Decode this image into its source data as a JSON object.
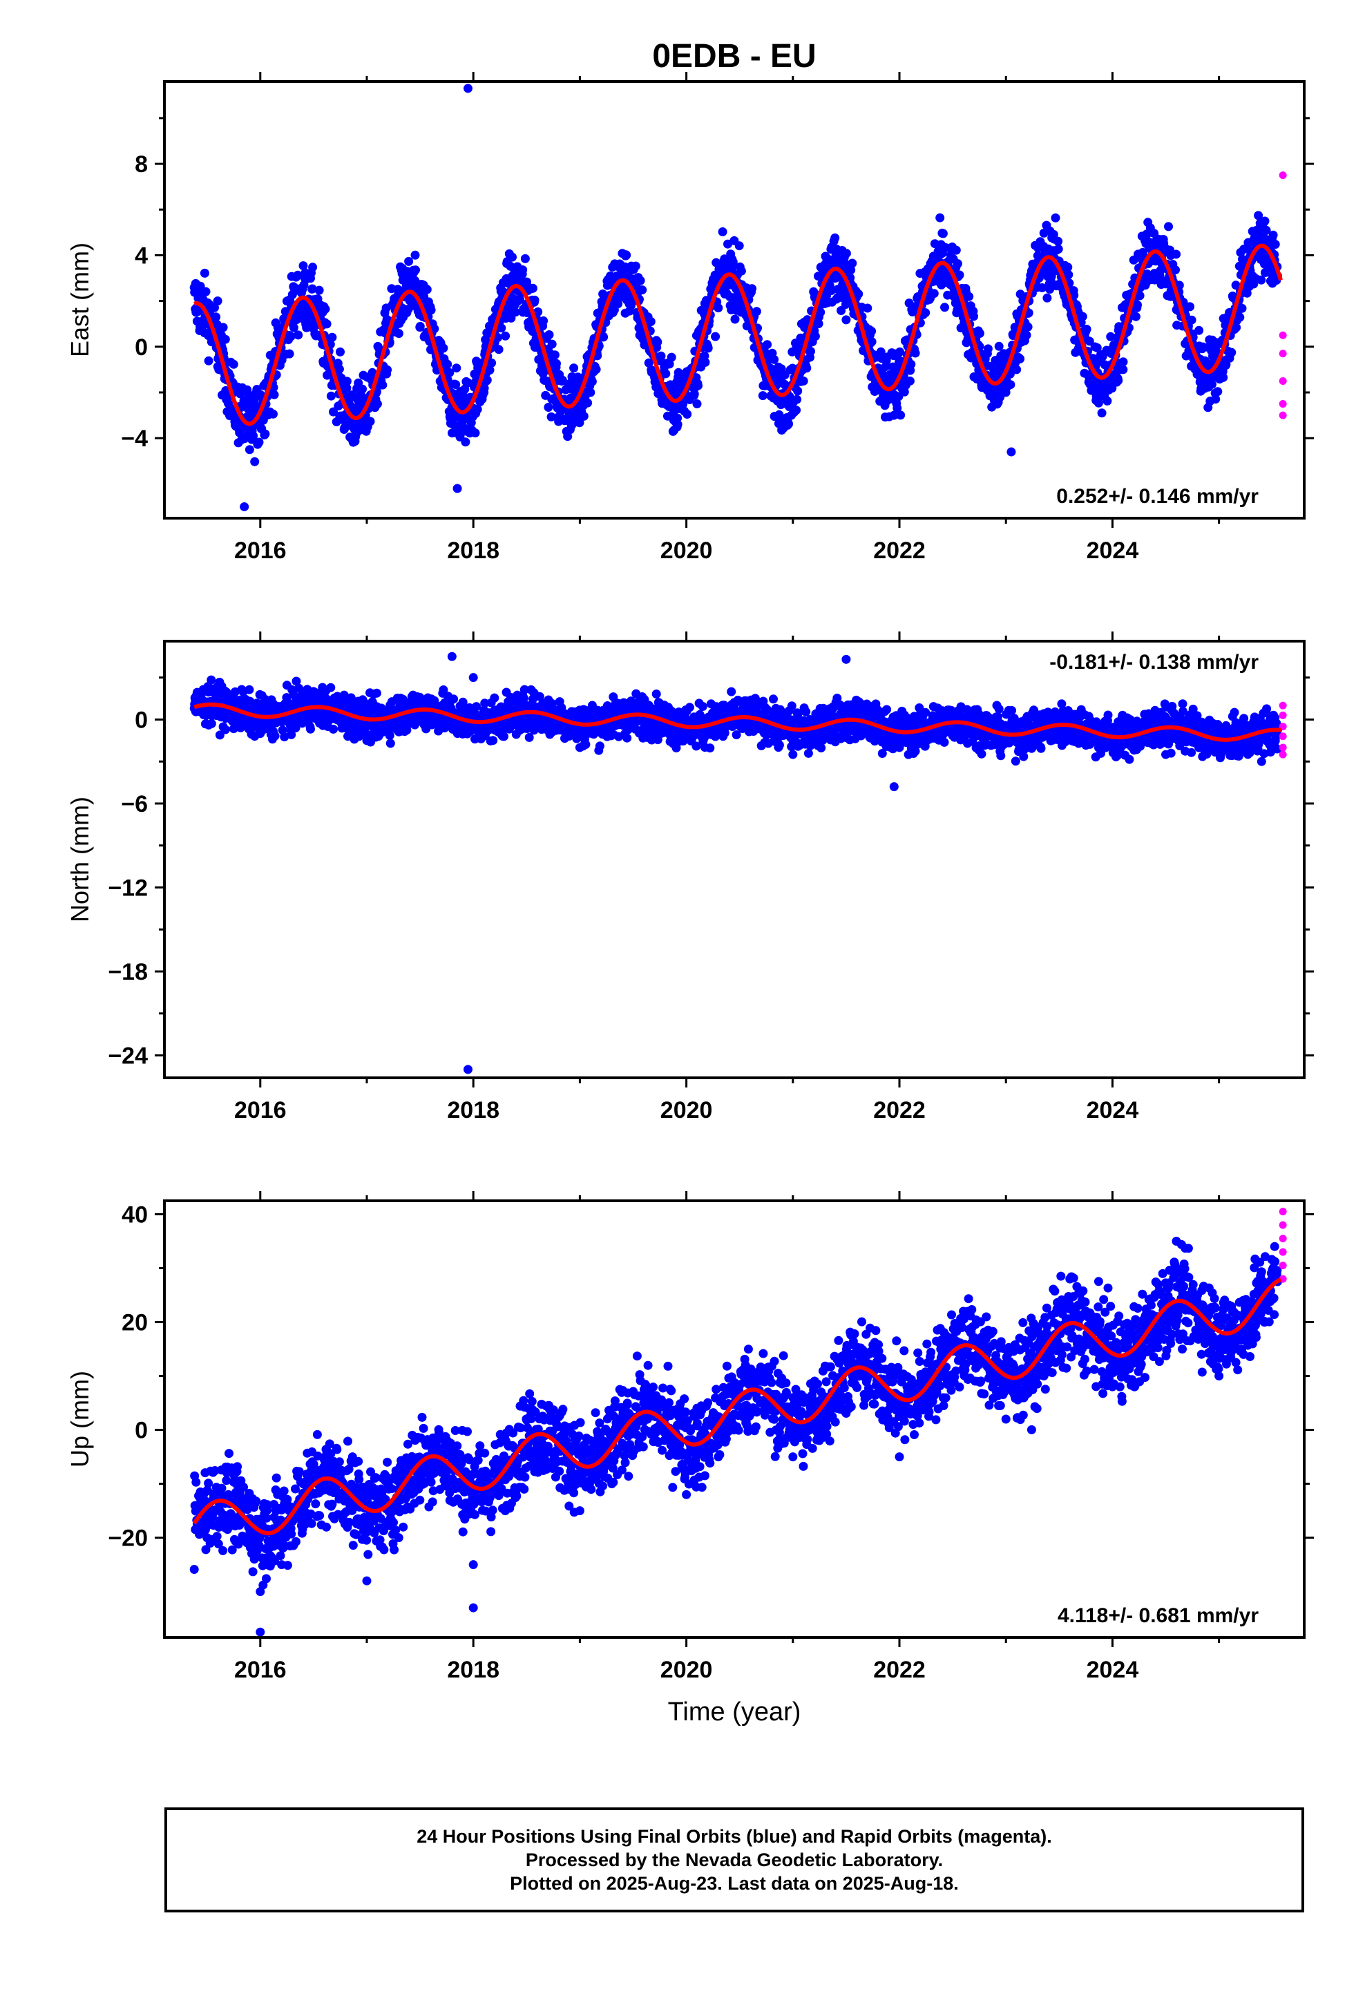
{
  "title": "0EDB - EU",
  "footer": {
    "line1": "24 Hour Positions Using Final Orbits (blue) and Rapid Orbits (magenta).",
    "line2": "Processed by the Nevada Geodetic Laboratory.",
    "line3": "Plotted on 2025-Aug-23. Last data on 2025-Aug-18."
  },
  "colors": {
    "final": "#0000ff",
    "rapid": "#ff00ff",
    "model": "#ff0000"
  },
  "chart_data": [
    {
      "type": "scatter",
      "title": "0EDB - EU",
      "xlabel": "",
      "ylabel": "East (mm)",
      "xlim": [
        2015.1,
        2025.8
      ],
      "ylim": [
        -7.5,
        11.6
      ],
      "xticks": [
        2016,
        2018,
        2020,
        2022,
        2024
      ],
      "yticks": [
        -4,
        0,
        4,
        8
      ],
      "rate_label": "0.252+/- 0.146 mm/yr",
      "rate_position": "bottom-right",
      "model": {
        "offset": -0.8,
        "rate": 0.252,
        "amp": 2.7,
        "phase_peak": 0.4
      },
      "series": [
        {
          "name": "Final Orbits",
          "type": "scatter",
          "points": [
            [
              2015.5,
              1.0
            ],
            [
              2015.6,
              2.0
            ],
            [
              2015.8,
              -3.0
            ],
            [
              2015.9,
              -4.5
            ],
            [
              2016.1,
              -2.0
            ],
            [
              2016.4,
              2.0
            ],
            [
              2016.6,
              0.5
            ],
            [
              2016.9,
              -3.8
            ],
            [
              2017.1,
              -2.5
            ],
            [
              2017.4,
              2.5
            ],
            [
              2017.6,
              1.0
            ],
            [
              2017.9,
              -3.5
            ],
            [
              2018.1,
              -2.0
            ],
            [
              2018.4,
              2.5
            ],
            [
              2018.6,
              1.0
            ],
            [
              2018.9,
              -3.0
            ],
            [
              2019.1,
              -2.0
            ],
            [
              2019.4,
              3.0
            ],
            [
              2019.6,
              1.5
            ],
            [
              2019.9,
              -2.5
            ],
            [
              2020.1,
              -2.5
            ],
            [
              2020.4,
              3.0
            ],
            [
              2020.6,
              1.5
            ],
            [
              2020.9,
              -2.5
            ],
            [
              2021.1,
              -1.5
            ],
            [
              2021.4,
              3.0
            ],
            [
              2021.6,
              1.5
            ],
            [
              2021.9,
              -2.0
            ],
            [
              2022.1,
              -1.5
            ],
            [
              2022.4,
              3.5
            ],
            [
              2022.6,
              2.0
            ],
            [
              2022.9,
              -2.0
            ],
            [
              2023.1,
              -1.0
            ],
            [
              2023.4,
              3.5
            ],
            [
              2023.6,
              2.0
            ],
            [
              2023.9,
              -1.5
            ],
            [
              2024.1,
              -1.0
            ],
            [
              2024.4,
              4.0
            ],
            [
              2024.6,
              2.5
            ],
            [
              2024.9,
              -1.5
            ],
            [
              2025.1,
              -0.5
            ],
            [
              2025.4,
              4.0
            ],
            [
              2017.95,
              11.3
            ],
            [
              2015.85,
              -7.0
            ],
            [
              2017.85,
              -6.2
            ],
            [
              2023.05,
              -4.6
            ]
          ]
        }
      ],
      "rapid": [
        [
          2025.6,
          7.5
        ],
        [
          2025.6,
          0.5
        ],
        [
          2025.6,
          -0.3
        ],
        [
          2025.6,
          -1.5
        ],
        [
          2025.6,
          -2.5
        ],
        [
          2025.6,
          -3.0
        ]
      ]
    },
    {
      "type": "scatter",
      "xlabel": "",
      "ylabel": "North (mm)",
      "xlim": [
        2015.1,
        2025.8
      ],
      "ylim": [
        -25.6,
        5.6
      ],
      "xticks": [
        2016,
        2018,
        2020,
        2022,
        2024
      ],
      "yticks": [
        -24,
        -18,
        -12,
        -6,
        0
      ],
      "rate_label": "-0.181+/- 0.138 mm/yr",
      "rate_position": "top-right",
      "model": {
        "offset": 0.7,
        "rate": -0.181,
        "amp": 0.4,
        "phase_peak": 0.55
      },
      "series": [
        {
          "name": "Final Orbits",
          "type": "scatter",
          "points": [
            [
              2015.5,
              1.0
            ],
            [
              2016.0,
              -1.0
            ],
            [
              2016.5,
              2.0
            ],
            [
              2017.0,
              -1.5
            ],
            [
              2017.5,
              1.5
            ],
            [
              2017.8,
              4.5
            ],
            [
              2018.0,
              3.0
            ],
            [
              2018.5,
              1.0
            ],
            [
              2019.0,
              -2.0
            ],
            [
              2019.5,
              1.0
            ],
            [
              2020.0,
              -1.0
            ],
            [
              2020.5,
              0.5
            ],
            [
              2021.0,
              -2.5
            ],
            [
              2021.5,
              -1.0
            ],
            [
              2022.0,
              -2.0
            ],
            [
              2022.5,
              0.5
            ],
            [
              2023.0,
              -1.5
            ],
            [
              2023.5,
              -1.0
            ],
            [
              2024.0,
              -1.0
            ],
            [
              2024.5,
              -2.5
            ],
            [
              2025.0,
              -2.0
            ],
            [
              2025.4,
              -3.0
            ],
            [
              2017.95,
              -25.0
            ],
            [
              2021.5,
              4.3
            ],
            [
              2021.95,
              -4.8
            ]
          ]
        }
      ],
      "rapid": [
        [
          2025.6,
          1.0
        ],
        [
          2025.6,
          0.3
        ],
        [
          2025.6,
          -0.5
        ],
        [
          2025.6,
          -1.2
        ],
        [
          2025.6,
          -2.0
        ],
        [
          2025.6,
          -2.5
        ]
      ]
    },
    {
      "type": "scatter",
      "xlabel": "Time (year)",
      "ylabel": "Up (mm)",
      "xlim": [
        2015.1,
        2025.8
      ],
      "ylim": [
        -38.5,
        42.5
      ],
      "xticks": [
        2016,
        2018,
        2020,
        2022,
        2024
      ],
      "yticks": [
        -20,
        0,
        20,
        40
      ],
      "rate_label": "4.118+/- 0.681 mm/yr",
      "rate_position": "bottom-right",
      "model": {
        "offset": -18.0,
        "rate": 4.118,
        "amp": 4.0,
        "phase_peak": 0.6
      },
      "series": [
        {
          "name": "Final Orbits",
          "type": "scatter",
          "points": [
            [
              2015.5,
              -20.0
            ],
            [
              2015.7,
              -12.0
            ],
            [
              2016.0,
              -30.0
            ],
            [
              2016.2,
              -25.0
            ],
            [
              2016.6,
              -8.0
            ],
            [
              2017.0,
              -28.0
            ],
            [
              2017.3,
              -20.0
            ],
            [
              2017.6,
              -3.0
            ],
            [
              2018.0,
              -25.0
            ],
            [
              2018.3,
              -15.0
            ],
            [
              2018.6,
              0.0
            ],
            [
              2019.0,
              -15.0
            ],
            [
              2019.3,
              -10.0
            ],
            [
              2019.6,
              5.0
            ],
            [
              2020.0,
              -12.0
            ],
            [
              2020.3,
              -5.0
            ],
            [
              2020.6,
              10.0
            ],
            [
              2021.0,
              -5.0
            ],
            [
              2021.3,
              0.0
            ],
            [
              2021.6,
              14.0
            ],
            [
              2022.0,
              -5.0
            ],
            [
              2022.3,
              5.0
            ],
            [
              2022.6,
              22.0
            ],
            [
              2023.0,
              2.0
            ],
            [
              2023.3,
              10.0
            ],
            [
              2023.6,
              28.0
            ],
            [
              2024.0,
              8.0
            ],
            [
              2024.3,
              15.0
            ],
            [
              2024.6,
              35.0
            ],
            [
              2025.0,
              10.0
            ],
            [
              2025.3,
              20.0
            ],
            [
              2016.0,
              -37.5
            ],
            [
              2018.0,
              -33.0
            ]
          ]
        }
      ],
      "rapid": [
        [
          2025.6,
          40.5
        ],
        [
          2025.6,
          38.0
        ],
        [
          2025.6,
          35.5
        ],
        [
          2025.6,
          33.0
        ],
        [
          2025.6,
          30.5
        ],
        [
          2025.6,
          28.0
        ]
      ]
    }
  ]
}
